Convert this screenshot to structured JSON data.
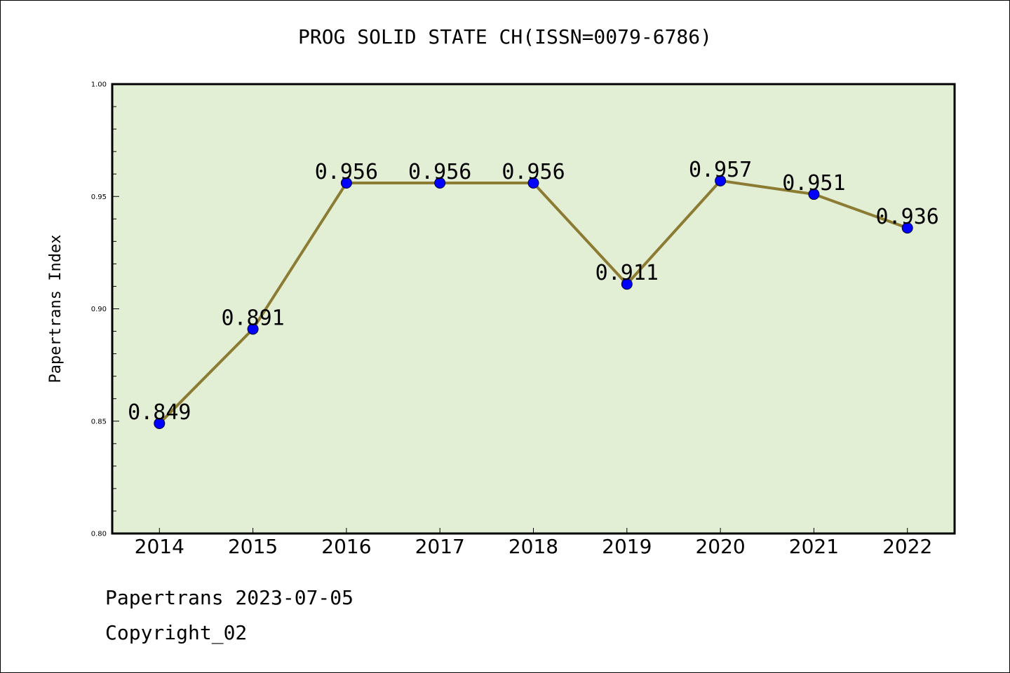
{
  "chart_data": {
    "type": "line",
    "title": "PROG SOLID STATE CH(ISSN=0079-6786)",
    "xlabel": "",
    "ylabel": "Papertrans Index",
    "categories": [
      "2014",
      "2015",
      "2016",
      "2017",
      "2018",
      "2019",
      "2020",
      "2021",
      "2022"
    ],
    "values": [
      0.849,
      0.891,
      0.956,
      0.956,
      0.956,
      0.911,
      0.957,
      0.951,
      0.936
    ],
    "data_labels": [
      "0.849",
      "0.891",
      "0.956",
      "0.956",
      "0.956",
      "0.911",
      "0.957",
      "0.951",
      "0.936"
    ],
    "ylim": [
      0.8,
      1.0
    ],
    "yticks": [
      "0.80",
      "0.85",
      "0.90",
      "0.95",
      "1.00"
    ],
    "yticks_values": [
      0.8,
      0.85,
      0.9,
      0.95,
      1.0
    ],
    "grid": false,
    "colors": {
      "plot_background": "#e2efd5",
      "line": "#8c7b32",
      "marker": "#0000ff"
    }
  },
  "footer": {
    "date_text": "Papertrans 2023-07-05",
    "copyright_text": "Copyright_02"
  }
}
